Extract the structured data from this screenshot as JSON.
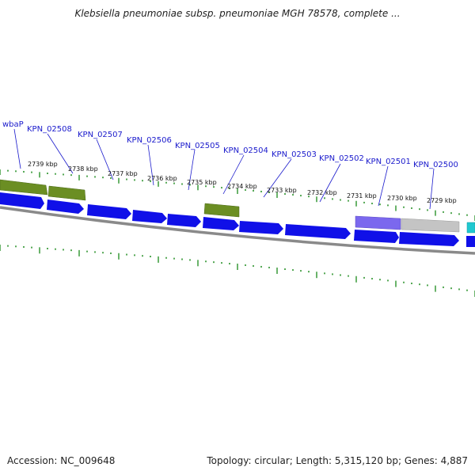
{
  "title": "Klebsiella pneumoniae subsp. pneumoniae MGH 78578, complete ...",
  "footer": {
    "accession": "Accession: NC_009648",
    "stats": "Topology: circular; Length: 5,315,120 bp; Genes: 4,887"
  },
  "colors": {
    "cds": "#1010e8",
    "gene_olive": "#6b8e23",
    "gene_purple": "#7b68ee",
    "gene_gray": "#bdbdbd",
    "gene_cyan": "#20c8d0",
    "backbone": "#808080",
    "tick": "#1a8a1a",
    "label": "#1a1acc"
  },
  "gene_labels": [
    {
      "id": "wbaP",
      "text": "wbaP"
    },
    {
      "id": "kpn02508",
      "text": "KPN_02508"
    },
    {
      "id": "kpn02507",
      "text": "KPN_02507"
    },
    {
      "id": "kpn02506",
      "text": "KPN_02506"
    },
    {
      "id": "kpn02505",
      "text": "KPN_02505"
    },
    {
      "id": "kpn02504",
      "text": "KPN_02504"
    },
    {
      "id": "kpn02503",
      "text": "KPN_02503"
    },
    {
      "id": "kpn02502",
      "text": "KPN_02502"
    },
    {
      "id": "kpn02501",
      "text": "KPN_02501"
    },
    {
      "id": "kpn02500",
      "text": "KPN_02500"
    }
  ],
  "tick_labels": [
    "2739 kbp",
    "2738 kbp",
    "2737 kbp",
    "2736 kbp",
    "2735 kbp",
    "2734 kbp",
    "2733 kbp",
    "2732 kbp",
    "2731 kbp",
    "2730 kbp",
    "2729 kbp"
  ]
}
